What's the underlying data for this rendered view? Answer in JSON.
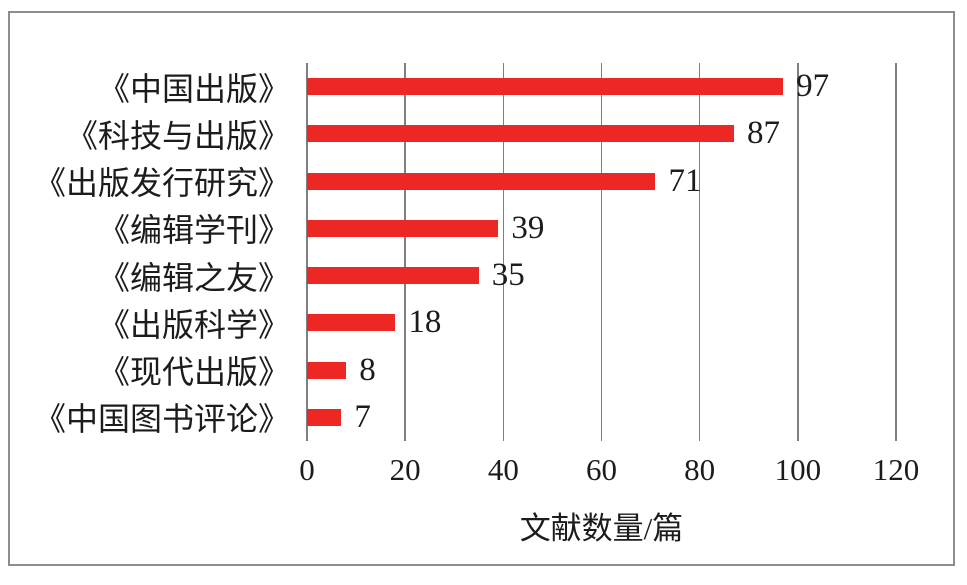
{
  "figure": {
    "background": "#ffffff",
    "border_color": "#8d8d8d"
  },
  "chart_data": {
    "type": "bar",
    "orientation": "horizontal",
    "title": "",
    "xlabel": "文献数量/篇",
    "ylabel": "",
    "categories": [
      "《中国出版》",
      "《科技与出版》",
      "《出版发行研究》",
      "《编辑学刊》",
      "《编辑之友》",
      "《出版科学》",
      "《现代出版》",
      "《中国图书评论》"
    ],
    "values": [
      97,
      87,
      71,
      39,
      35,
      18,
      8,
      7
    ],
    "value_labels": [
      "97",
      "87",
      "71",
      "39",
      "35",
      "18",
      "8",
      "7"
    ],
    "x_ticks": [
      0,
      20,
      40,
      60,
      80,
      100,
      120
    ],
    "x_tick_labels": [
      "0",
      "20",
      "40",
      "60",
      "80",
      "100",
      "120"
    ],
    "xlim": [
      0,
      120
    ],
    "grid": "vertical-only",
    "legend": "none",
    "bar_color": "#ED2724",
    "gridline_color": "#7f7f7f",
    "text_color": "#1c1c1c"
  }
}
